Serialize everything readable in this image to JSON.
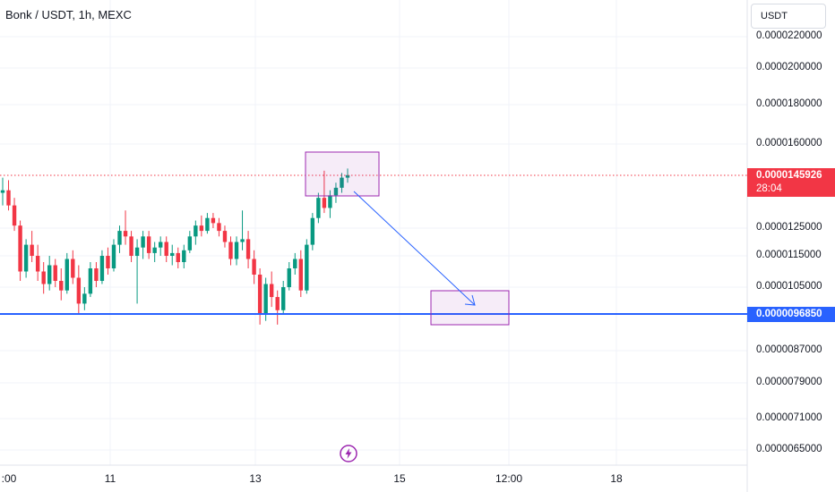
{
  "header": {
    "symbol_title": "Bonk / USDT, 1h, MEXC",
    "currency_button": "USDT"
  },
  "price_axis": {
    "labels": [
      "0.0000220000",
      "0.0000200000",
      "0.0000180000",
      "0.0000160000",
      "0.0000125000",
      "0.0000115000",
      "0.0000105000",
      "0.0000087000",
      "0.0000079000",
      "0.0000071000",
      "0.0000065000"
    ]
  },
  "time_axis": {
    "labels": [
      ":00",
      "11",
      "13",
      "15",
      "12:00",
      "18"
    ]
  },
  "current_price": {
    "value": "0.0000145926",
    "countdown": "28:04",
    "color": "#f23645"
  },
  "support_level": {
    "value": "0.0000096850",
    "color": "#2962ff"
  },
  "colors": {
    "up": "#089981",
    "down": "#f23645",
    "annotation": "#9c27b0",
    "arrow": "#2962ff",
    "grid": "#f0f3fa"
  },
  "icons": {
    "bottom_center": "flash-icon"
  },
  "chart_data": {
    "type": "candlestick",
    "title": "Bonk / USDT, 1h, MEXC",
    "xlabel": "",
    "ylabel": "",
    "y_axis_ticks": [
      2.2e-05,
      2e-05,
      1.8e-05,
      1.6e-05,
      1.25e-05,
      1.15e-05,
      1.05e-05,
      8.7e-06,
      7.9e-06,
      7.1e-06,
      6.5e-06
    ],
    "x_axis_ticks": [
      ":00",
      "11",
      "13",
      "15",
      "12:00",
      "18"
    ],
    "current_price": 1.45926e-05,
    "horizontal_line": 9.685e-06,
    "grid": true,
    "annotations": [
      "rectangle around recent high",
      "arrow pointing down to target rectangle at the horizontal line"
    ],
    "candles": [
      [
        1.39e-05,
        1.45e-05,
        1.34e-05,
        1.4e-05
      ],
      [
        1.4e-05,
        1.44e-05,
        1.32e-05,
        1.34e-05
      ],
      [
        1.34e-05,
        1.37e-05,
        1.24e-05,
        1.26e-05
      ],
      [
        1.26e-05,
        1.28e-05,
        1.07e-05,
        1.1e-05
      ],
      [
        1.1e-05,
        1.21e-05,
        1.08e-05,
        1.19e-05
      ],
      [
        1.19e-05,
        1.24e-05,
        1.13e-05,
        1.15e-05
      ],
      [
        1.15e-05,
        1.19e-05,
        1.07e-05,
        1.1e-05
      ],
      [
        1.1e-05,
        1.13e-05,
        1.03e-05,
        1.06e-05
      ],
      [
        1.06e-05,
        1.15e-05,
        1.04e-05,
        1.12e-05
      ],
      [
        1.12e-05,
        1.14e-05,
        1.05e-05,
        1.07e-05
      ],
      [
        1.07e-05,
        1.11e-05,
        1.01e-05,
        1.04e-05
      ],
      [
        1.04e-05,
        1.16e-05,
        1.03e-05,
        1.14e-05
      ],
      [
        1.14e-05,
        1.17e-05,
        1.06e-05,
        1.08e-05
      ],
      [
        1.08e-05,
        1.12e-05,
        9.7e-06,
        1e-05
      ],
      [
        1e-05,
        1.05e-05,
        9.8e-06,
        1.03e-05
      ],
      [
        1.03e-05,
        1.13e-05,
        1.02e-05,
        1.11e-05
      ],
      [
        1.11e-05,
        1.13e-05,
        1.05e-05,
        1.07e-05
      ],
      [
        1.07e-05,
        1.17e-05,
        1.06e-05,
        1.15e-05
      ],
      [
        1.15e-05,
        1.18e-05,
        1.09e-05,
        1.11e-05
      ],
      [
        1.11e-05,
        1.21e-05,
        1.1e-05,
        1.19e-05
      ],
      [
        1.19e-05,
        1.26e-05,
        1.16e-05,
        1.24e-05
      ],
      [
        1.24e-05,
        1.32e-05,
        1.19e-05,
        1.22e-05
      ],
      [
        1.22e-05,
        1.24e-05,
        1.13e-05,
        1.15e-05
      ],
      [
        1.15e-05,
        1.21e-05,
        1e-05,
        1.18e-05
      ],
      [
        1.18e-05,
        1.24e-05,
        1.14e-05,
        1.22e-05
      ],
      [
        1.22e-05,
        1.24e-05,
        1.14e-05,
        1.16e-05
      ],
      [
        1.16e-05,
        1.2e-05,
        1.13e-05,
        1.18e-05
      ],
      [
        1.18e-05,
        1.22e-05,
        1.15e-05,
        1.2e-05
      ],
      [
        1.2e-05,
        1.22e-05,
        1.13e-05,
        1.15e-05
      ],
      [
        1.15e-05,
        1.19e-05,
        1.12e-05,
        1.16e-05
      ],
      [
        1.16e-05,
        1.18e-05,
        1.11e-05,
        1.13e-05
      ],
      [
        1.13e-05,
        1.19e-05,
        1.11e-05,
        1.17e-05
      ],
      [
        1.17e-05,
        1.24e-05,
        1.16e-05,
        1.22e-05
      ],
      [
        1.22e-05,
        1.28e-05,
        1.19e-05,
        1.26e-05
      ],
      [
        1.26e-05,
        1.3e-05,
        1.22e-05,
        1.24e-05
      ],
      [
        1.24e-05,
        1.31e-05,
        1.23e-05,
        1.29e-05
      ],
      [
        1.29e-05,
        1.31e-05,
        1.25e-05,
        1.27e-05
      ],
      [
        1.27e-05,
        1.29e-05,
        1.22e-05,
        1.24e-05
      ],
      [
        1.24e-05,
        1.26e-05,
        1.18e-05,
        1.2e-05
      ],
      [
        1.2e-05,
        1.22e-05,
        1.12e-05,
        1.14e-05
      ],
      [
        1.14e-05,
        1.22e-05,
        1.12e-05,
        1.2e-05
      ],
      [
        1.2e-05,
        1.32e-05,
        1.17e-05,
        1.21e-05
      ],
      [
        1.21e-05,
        1.24e-05,
        1.11e-05,
        1.14e-05
      ],
      [
        1.14e-05,
        1.17e-05,
        1.06e-05,
        1.09e-05
      ],
      [
        1.09e-05,
        1.11e-05,
        9.4e-06,
        9.7e-06
      ],
      [
        9.7e-06,
        1.08e-05,
        9.5e-06,
        1.06e-05
      ],
      [
        1.06e-05,
        1.1e-05,
        9.9e-06,
        1.02e-05
      ],
      [
        1.02e-05,
        1.04e-05,
        9.4e-06,
        9.8e-06
      ],
      [
        9.8e-06,
        1.07e-05,
        9.7e-06,
        1.05e-05
      ],
      [
        1.05e-05,
        1.13e-05,
        1.04e-05,
        1.11e-05
      ],
      [
        1.11e-05,
        1.16e-05,
        1.09e-05,
        1.14e-05
      ],
      [
        1.14e-05,
        1.17e-05,
        1.02e-05,
        1.04e-05
      ],
      [
        1.04e-05,
        1.21e-05,
        1.03e-05,
        1.19e-05
      ],
      [
        1.19e-05,
        1.31e-05,
        1.17e-05,
        1.29e-05
      ],
      [
        1.29e-05,
        1.39e-05,
        1.27e-05,
        1.37e-05
      ],
      [
        1.37e-05,
        1.48e-05,
        1.31e-05,
        1.33e-05
      ],
      [
        1.33e-05,
        1.4e-05,
        1.29e-05,
        1.38e-05
      ],
      [
        1.38e-05,
        1.43e-05,
        1.35e-05,
        1.41e-05
      ],
      [
        1.41e-05,
        1.47e-05,
        1.39e-05,
        1.45e-05
      ],
      [
        1.45e-05,
        1.49e-05,
        1.43e-05,
        1.46e-05
      ]
    ]
  }
}
